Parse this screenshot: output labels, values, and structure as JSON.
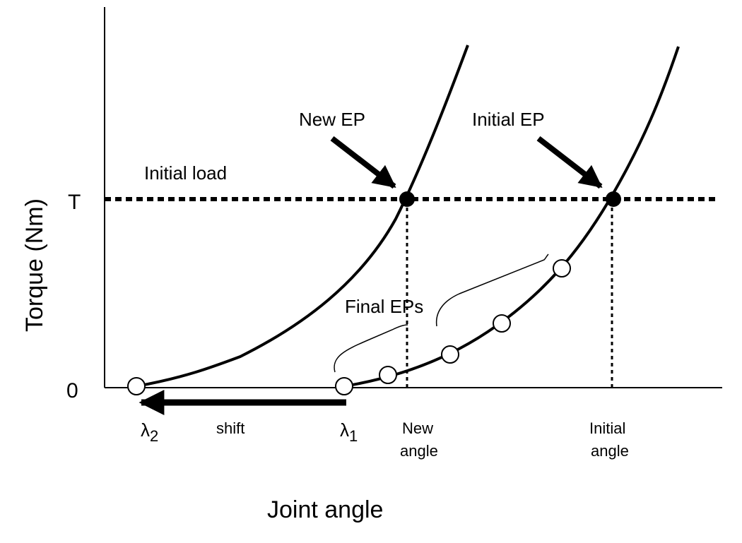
{
  "axes": {
    "y_title": "Torque (Nm)",
    "x_title": "Joint angle",
    "y_ticks": [
      "T",
      "0"
    ]
  },
  "labels": {
    "initial_load": "Initial load",
    "new_ep": "New EP",
    "initial_ep": "Initial EP",
    "final_eps": "Final EPs",
    "shift": "shift",
    "lambda_symbol": "λ",
    "lambda2_subscript": "2",
    "lambda1_subscript": "1",
    "new_angle_line1": "New",
    "new_angle_line2": "angle",
    "initial_angle_line1": "Initial",
    "initial_angle_line2": "angle"
  },
  "colors": {
    "ink": "#000000",
    "open_marker_fill": "#ffffff"
  }
}
